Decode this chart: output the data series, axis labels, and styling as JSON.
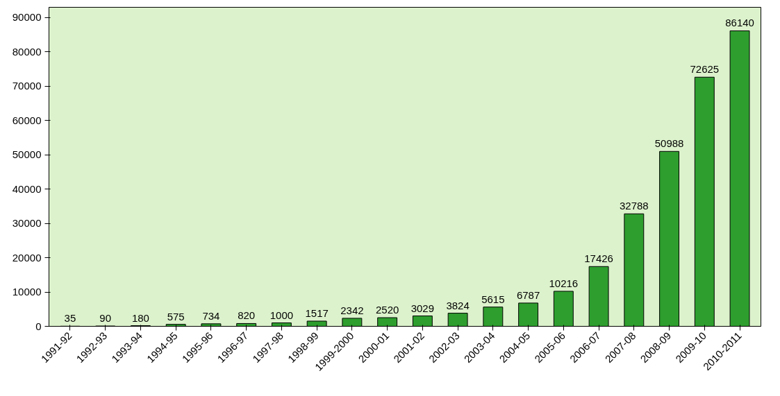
{
  "chart_data": {
    "type": "bar",
    "categories": [
      "1991-92",
      "1992-93",
      "1993-94",
      "1994-95",
      "1995-96",
      "1996-97",
      "1997-98",
      "1998-99",
      "1999-2000",
      "2000-01",
      "2001-02",
      "2002-03",
      "2003-04",
      "2004-05",
      "2005-06",
      "2006-07",
      "2007-08",
      "2008-09",
      "2009-10",
      "2010-2011"
    ],
    "values": [
      35,
      90,
      180,
      575,
      734,
      820,
      1000,
      1517,
      2342,
      2520,
      3029,
      3824,
      5615,
      6787,
      10216,
      17426,
      32788,
      50988,
      72625,
      86140
    ],
    "color": "#2e9e2e",
    "ylim": [
      0,
      93000
    ],
    "yticks": [
      0,
      10000,
      20000,
      30000,
      40000,
      50000,
      60000,
      70000,
      80000,
      90000
    ],
    "data_labels": true,
    "grid": false
  }
}
